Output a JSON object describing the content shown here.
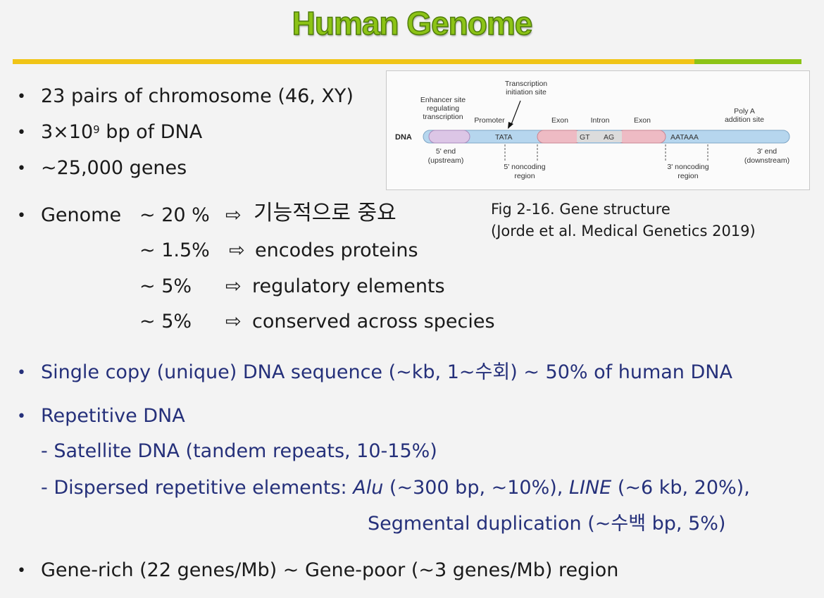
{
  "title": "Human Genome",
  "colors": {
    "title": "#8cc316",
    "rule_yellow": "#f0c416",
    "rule_green": "#8cc316",
    "blue_text": "#25307a"
  },
  "bullets_top": {
    "chromosome": "23 pairs of chromosome (46, XY)",
    "bp_pre": "3×10",
    "bp_exp": "9",
    "bp_post": " bp of DNA",
    "genes": "~25,000 genes"
  },
  "genome": {
    "label": "Genome",
    "arrow": "⇨",
    "rows": [
      {
        "pct": "~ 20 %",
        "text": "기능적으로 중요"
      },
      {
        "pct": "~ 1.5%",
        "text": "encodes proteins"
      },
      {
        "pct": "~ 5%",
        "text": "regulatory elements"
      },
      {
        "pct": "~ 5%",
        "text": "conserved across species"
      }
    ]
  },
  "figure": {
    "caption_line1": "Fig 2-16. Gene structure",
    "caption_line2": "(Jorde et al. Medical Genetics 2019)",
    "labels": {
      "enhancer_1": "Enhancer site",
      "enhancer_2": "regulating",
      "enhancer_3": "transcription",
      "promoter": "Promoter",
      "tis_1": "Transcription",
      "tis_2": "initiation site",
      "exon_a": "Exon",
      "intron": "Intron",
      "exon_b": "Exon",
      "polya_1": "Poly A",
      "polya_2": "addition site",
      "dna": "DNA",
      "tata": "TATA",
      "gt": "GT",
      "ag": "AG",
      "aataaa": "AATAAA",
      "end5_1": "5' end",
      "end5_2": "(upstream)",
      "nc5_1": "5' noncoding",
      "nc5_2": "region",
      "nc3_1": "3' noncoding",
      "nc3_2": "region",
      "end3_1": "3' end",
      "end3_2": "(downstream)"
    }
  },
  "single_copy": "Single copy (unique) DNA sequence (~kb, 1~수회) ~ 50% of human DNA",
  "repetitive": {
    "heading": "Repetitive DNA",
    "satellite": "- Satellite DNA (tandem repeats, 10-15%)",
    "dispersed_pre": "- Dispersed repetitive elements: ",
    "alu": "Alu",
    "alu_info": " (~300 bp, ~10%), ",
    "line": "LINE",
    "line_info": " (~6 kb, 20%),",
    "segmental": "Segmental duplication (~수백 bp, 5%)"
  },
  "gene_rich": "Gene-rich (22 genes/Mb) ~ Gene-poor (~3 genes/Mb) region",
  "bullet_char": "•"
}
